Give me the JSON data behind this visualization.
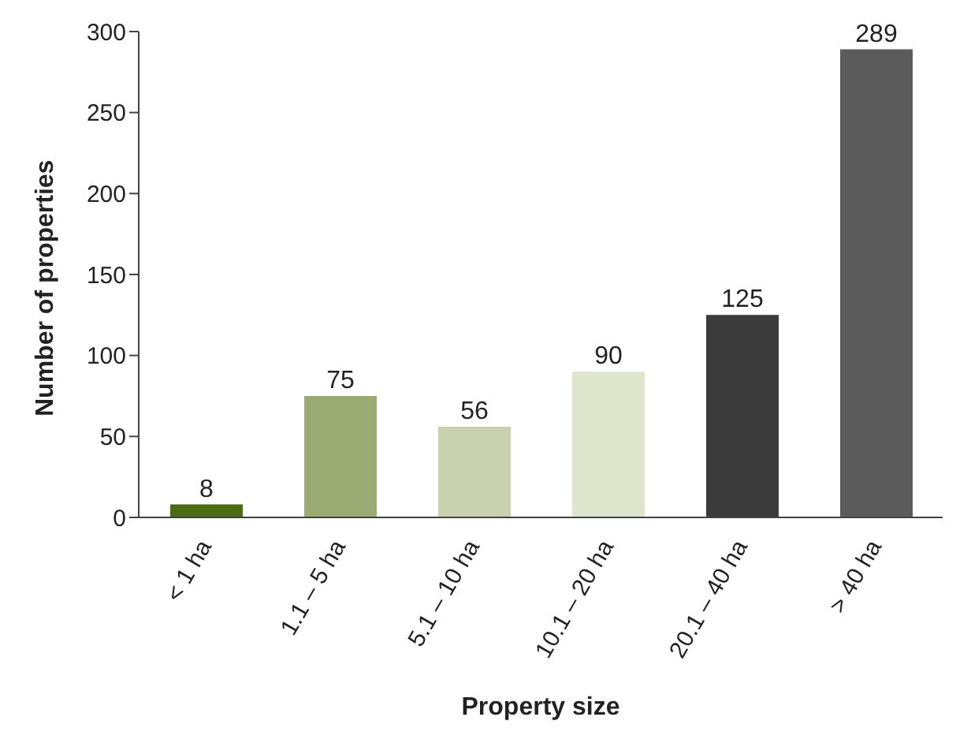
{
  "chart_data": {
    "type": "bar",
    "xlabel": "Property size",
    "ylabel": "Number of properties",
    "categories": [
      "< 1 ha",
      "1.1 – 5 ha",
      "5.1 – 10 ha",
      "10.1 – 20 ha",
      "20.1 – 40 ha",
      "> 40 ha"
    ],
    "values": [
      8,
      75,
      56,
      90,
      125,
      289
    ],
    "colors": [
      "#4d6b12",
      "#9cab74",
      "#c9d1ae",
      "#dfe4cd",
      "#3b3b3b",
      "#5b5b5b"
    ],
    "ylim": [
      0,
      300
    ],
    "yticks": [
      0,
      50,
      100,
      150,
      200,
      250,
      300
    ],
    "grid": false,
    "data_labels": true
  }
}
